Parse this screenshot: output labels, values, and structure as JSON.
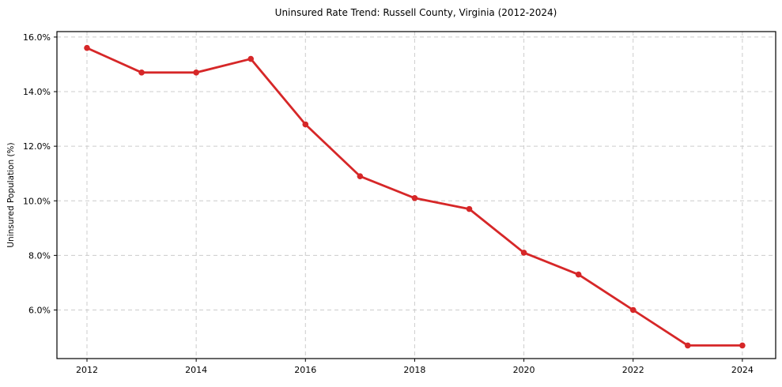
{
  "title": "Uninsured Rate Trend: Russell County, Virginia (2012-2024)",
  "colors": {
    "line": "#d62728",
    "grid": "#cccccc",
    "axis": "#000000",
    "background": "#ffffff"
  },
  "chart_data": {
    "type": "line",
    "title": "Uninsured Rate Trend: Russell County, Virginia (2012-2024)",
    "xlabel": "",
    "ylabel": "Uninsured Population (%)",
    "x": [
      2012,
      2013,
      2014,
      2015,
      2016,
      2017,
      2018,
      2019,
      2020,
      2021,
      2022,
      2023,
      2024
    ],
    "values": [
      15.6,
      14.7,
      14.7,
      15.2,
      12.8,
      10.9,
      10.1,
      9.7,
      8.1,
      7.3,
      6.0,
      4.7,
      4.7
    ],
    "xlim": [
      2011.45,
      2024.61
    ],
    "ylim": [
      4.22,
      16.2
    ],
    "x_ticks": [
      2012,
      2014,
      2016,
      2018,
      2020,
      2022,
      2024
    ],
    "x_tick_labels": [
      "2012",
      "2014",
      "2016",
      "2018",
      "2020",
      "2022",
      "2024"
    ],
    "y_ticks": [
      6,
      8,
      10,
      12,
      14,
      16
    ],
    "y_tick_labels": [
      "6.0%",
      "8.0%",
      "10.0%",
      "12.0%",
      "14.0%",
      "16.0%"
    ],
    "grid": true,
    "legend": false,
    "line_color": "#d62728",
    "grid_color": "#cccccc",
    "marker": "circle"
  }
}
